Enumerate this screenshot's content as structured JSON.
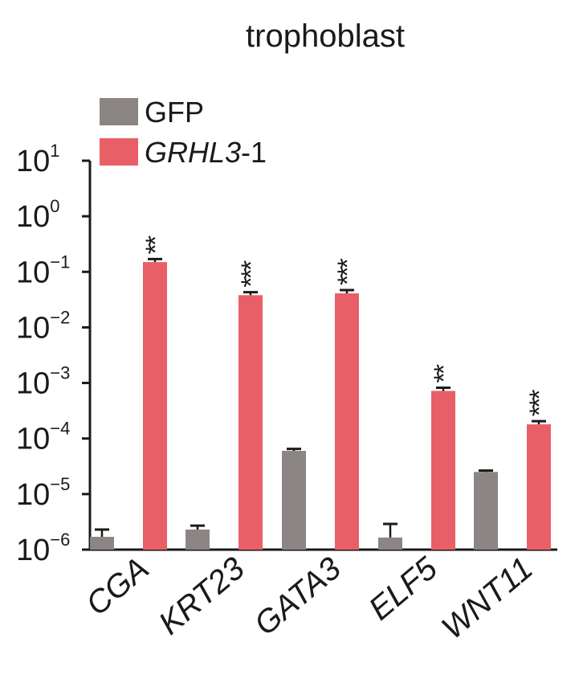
{
  "chart_data": {
    "type": "bar",
    "title": "trophoblast",
    "yscale": "log",
    "ylim": [
      1e-06,
      10
    ],
    "yticks": [
      {
        "base": "10",
        "exp": "1",
        "value": 10
      },
      {
        "base": "10",
        "exp": "0",
        "value": 1
      },
      {
        "base": "10",
        "exp": "−1",
        "value": 0.1
      },
      {
        "base": "10",
        "exp": "−2",
        "value": 0.01
      },
      {
        "base": "10",
        "exp": "−3",
        "value": 0.001
      },
      {
        "base": "10",
        "exp": "−4",
        "value": 0.0001
      },
      {
        "base": "10",
        "exp": "−5",
        "value": 1e-05
      },
      {
        "base": "10",
        "exp": "−6",
        "value": 1e-06
      }
    ],
    "categories": [
      "CGA",
      "KRT23",
      "GATA3",
      "ELF5",
      "WNT11"
    ],
    "legend": {
      "placement": "top-left",
      "entries": [
        {
          "series": 0,
          "label": "GFP",
          "italic_part": "",
          "rest": ""
        },
        {
          "series": 1,
          "label": "",
          "italic_part": "GRHL3",
          "rest": "-1"
        }
      ]
    },
    "series": [
      {
        "key": "GFP",
        "color": "#8b8584",
        "values": [
          1.7e-06,
          2.3e-06,
          6e-05,
          1.65e-06,
          2.5e-05
        ],
        "error_upper": [
          2.3e-06,
          2.7e-06,
          6.5e-05,
          2.9e-06,
          2.65e-05
        ]
      },
      {
        "key": "GRHL3-1",
        "color": "#e95f67",
        "values": [
          0.15,
          0.038,
          0.041,
          0.00072,
          0.00018
        ],
        "error_upper": [
          0.17,
          0.043,
          0.047,
          0.00082,
          0.000205
        ],
        "significance": [
          "**",
          "***",
          "***",
          "**",
          "***"
        ]
      }
    ]
  }
}
